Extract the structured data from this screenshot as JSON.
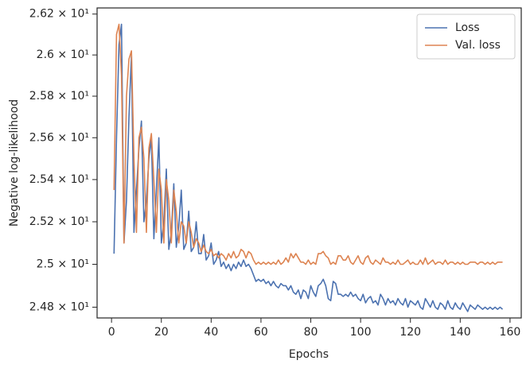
{
  "chart_data": {
    "type": "line",
    "xlabel": "Epochs",
    "ylabel": "Negative log-likelihood",
    "yscale": "log",
    "legend": "upper right",
    "grid": false,
    "xlim": [
      -5.8,
      164.5
    ],
    "xticks": [
      0,
      20,
      40,
      60,
      80,
      100,
      120,
      140,
      160
    ],
    "ylim": [
      24.75,
      26.23
    ],
    "yticks": [
      {
        "value": 24.8,
        "label": "2.48 × 10¹"
      },
      {
        "value": 25.0,
        "label": "2.5 × 10¹"
      },
      {
        "value": 25.2,
        "label": "2.52 × 10¹"
      },
      {
        "value": 25.4,
        "label": "2.54 × 10¹"
      },
      {
        "value": 25.6,
        "label": "2.56 × 10¹"
      },
      {
        "value": 25.8,
        "label": "2.58 × 10¹"
      },
      {
        "value": 26.0,
        "label": "2.6 × 10¹"
      },
      {
        "value": 26.2,
        "label": "2.62 × 10¹"
      }
    ],
    "x": [
      1,
      2,
      3,
      4,
      5,
      6,
      7,
      8,
      9,
      10,
      11,
      12,
      13,
      14,
      15,
      16,
      17,
      18,
      19,
      20,
      21,
      22,
      23,
      24,
      25,
      26,
      27,
      28,
      29,
      30,
      31,
      32,
      33,
      34,
      35,
      36,
      37,
      38,
      39,
      40,
      41,
      42,
      43,
      44,
      45,
      46,
      47,
      48,
      49,
      50,
      51,
      52,
      53,
      54,
      55,
      56,
      57,
      58,
      59,
      60,
      61,
      62,
      63,
      64,
      65,
      66,
      67,
      68,
      69,
      70,
      71,
      72,
      73,
      74,
      75,
      76,
      77,
      78,
      79,
      80,
      81,
      82,
      83,
      84,
      85,
      86,
      87,
      88,
      89,
      90,
      91,
      92,
      93,
      94,
      95,
      96,
      97,
      98,
      99,
      100,
      101,
      102,
      103,
      104,
      105,
      106,
      107,
      108,
      109,
      110,
      111,
      112,
      113,
      114,
      115,
      116,
      117,
      118,
      119,
      120,
      121,
      122,
      123,
      124,
      125,
      126,
      127,
      128,
      129,
      130,
      131,
      132,
      133,
      134,
      135,
      136,
      137,
      138,
      139,
      140,
      141,
      142,
      143,
      144,
      145,
      146,
      147,
      148,
      149,
      150,
      151,
      152,
      153,
      154,
      155,
      156,
      157
    ],
    "series": [
      {
        "name": "Loss",
        "color": "#4c72b0",
        "values": [
          25.05,
          25.6,
          26.05,
          26.15,
          25.1,
          25.3,
          25.7,
          26.0,
          25.15,
          25.35,
          25.55,
          25.68,
          25.2,
          25.3,
          25.5,
          25.6,
          25.12,
          25.35,
          25.6,
          25.1,
          25.2,
          25.45,
          25.07,
          25.15,
          25.38,
          25.08,
          25.18,
          25.35,
          25.07,
          25.1,
          25.25,
          25.06,
          25.08,
          25.2,
          25.05,
          25.05,
          25.14,
          25.02,
          25.04,
          25.1,
          25.0,
          25.02,
          25.06,
          24.99,
          25.01,
          24.98,
          25.0,
          24.97,
          25.0,
          24.98,
          25.01,
          24.99,
          25.02,
          24.99,
          25.0,
          24.98,
          24.95,
          24.92,
          24.93,
          24.92,
          24.93,
          24.91,
          24.92,
          24.9,
          24.92,
          24.9,
          24.89,
          24.91,
          24.9,
          24.9,
          24.88,
          24.9,
          24.87,
          24.86,
          24.88,
          24.84,
          24.88,
          24.87,
          24.84,
          24.9,
          24.87,
          24.85,
          24.9,
          24.91,
          24.93,
          24.9,
          24.84,
          24.83,
          24.92,
          24.91,
          24.86,
          24.86,
          24.85,
          24.86,
          24.85,
          24.87,
          24.85,
          24.86,
          24.84,
          24.83,
          24.86,
          24.82,
          24.84,
          24.85,
          24.82,
          24.83,
          24.81,
          24.86,
          24.84,
          24.81,
          24.84,
          24.82,
          24.83,
          24.81,
          24.84,
          24.82,
          24.81,
          24.84,
          24.8,
          24.83,
          24.82,
          24.81,
          24.83,
          24.8,
          24.79,
          24.84,
          24.82,
          24.8,
          24.83,
          24.8,
          24.79,
          24.82,
          24.81,
          24.79,
          24.83,
          24.8,
          24.79,
          24.82,
          24.8,
          24.79,
          24.82,
          24.8,
          24.78,
          24.81,
          24.8,
          24.79,
          24.81,
          24.8,
          24.79,
          24.8,
          24.79,
          24.8,
          24.79,
          24.8,
          24.79,
          24.8,
          24.79
        ]
      },
      {
        "name": "Val. loss",
        "color": "#dd8452",
        "values": [
          25.35,
          26.1,
          26.15,
          25.9,
          25.1,
          25.8,
          25.98,
          26.02,
          25.5,
          25.15,
          25.6,
          25.65,
          25.5,
          25.15,
          25.55,
          25.62,
          25.4,
          25.15,
          25.45,
          25.35,
          25.1,
          25.4,
          25.3,
          25.1,
          25.35,
          25.25,
          25.1,
          25.2,
          25.18,
          25.1,
          25.2,
          25.15,
          25.08,
          25.12,
          25.1,
          25.06,
          25.09,
          25.06,
          25.05,
          25.07,
          25.04,
          25.05,
          25.03,
          25.05,
          25.04,
          25.02,
          25.05,
          25.03,
          25.06,
          25.03,
          25.04,
          25.07,
          25.06,
          25.03,
          25.06,
          25.05,
          25.02,
          25.0,
          25.01,
          25.0,
          25.01,
          25.0,
          25.01,
          25.0,
          25.01,
          25.0,
          25.02,
          25.0,
          25.01,
          25.03,
          25.01,
          25.05,
          25.03,
          25.05,
          25.03,
          25.01,
          25.01,
          25.0,
          25.02,
          25.0,
          25.01,
          25.0,
          25.05,
          25.05,
          25.06,
          25.04,
          25.03,
          25.0,
          25.01,
          25.0,
          25.04,
          25.04,
          25.02,
          25.02,
          25.04,
          25.01,
          25.0,
          25.02,
          25.04,
          25.01,
          25.0,
          25.03,
          25.04,
          25.01,
          25.0,
          25.02,
          25.01,
          25.0,
          25.03,
          25.01,
          25.01,
          25.0,
          25.01,
          25.0,
          25.02,
          25.0,
          25.0,
          25.01,
          25.02,
          25.0,
          25.01,
          25.0,
          25.0,
          25.02,
          25.0,
          25.03,
          25.0,
          25.01,
          25.02,
          25.0,
          25.01,
          25.01,
          25.0,
          25.02,
          25.0,
          25.01,
          25.01,
          25.0,
          25.01,
          25.0,
          25.01,
          25.0,
          25.0,
          25.01,
          25.01,
          25.01,
          25.0,
          25.01,
          25.01,
          25.0,
          25.01,
          25.0,
          25.01,
          25.0,
          25.01,
          25.01,
          25.01
        ]
      }
    ]
  }
}
